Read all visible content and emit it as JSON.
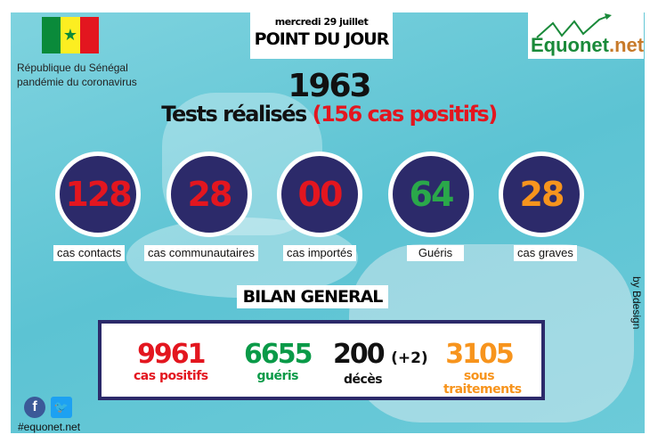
{
  "header": {
    "country": "République du Sénégal",
    "subtitle": "pandémie du coronavirus",
    "date": "mercredi 29 juillet",
    "title": "POINT DU JOUR",
    "logo_main": "Equonet",
    "logo_tld": ".net"
  },
  "tests": {
    "count": "1963",
    "label": "Tests réalisés",
    "positives": "(156 cas positifs)"
  },
  "daily": [
    {
      "value": "128",
      "label": "cas contacts",
      "color": "#e3161f"
    },
    {
      "value": "28",
      "label": "cas communautaires",
      "color": "#e3161f"
    },
    {
      "value": "00",
      "label": "cas importés",
      "color": "#e3161f"
    },
    {
      "value": "64",
      "label": "Guéris",
      "color": "#2aa84a"
    },
    {
      "value": "28",
      "label": "cas graves",
      "color": "#f7941d"
    }
  ],
  "bilan": {
    "title": "BILAN GENERAL",
    "positifs": {
      "value": "9961",
      "label": "cas positifs",
      "color": "#e3161f"
    },
    "gueris": {
      "value": "6655",
      "label": "guéris",
      "color": "#0a9a48"
    },
    "deces": {
      "value": "200",
      "delta": "(+2)",
      "label": "décès",
      "color": "#111111"
    },
    "traitement": {
      "value": "3105",
      "label1": "sous",
      "label2": "traitements",
      "color": "#f7941d"
    }
  },
  "footer": {
    "hashtag": "#equonet.net",
    "credit": "by Bdesign",
    "social_icons": [
      "facebook-icon",
      "twitter-icon"
    ]
  }
}
